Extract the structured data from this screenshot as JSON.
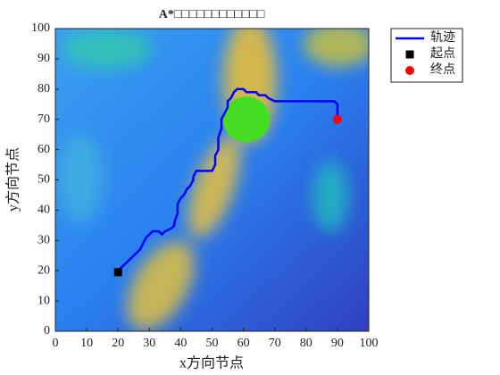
{
  "chart_data": {
    "type": "line",
    "title": "A*□□□□□□□□□□□□",
    "x_label": "x方向节点",
    "y_label": "y方向节点",
    "xlim": [
      0,
      100
    ],
    "ylim": [
      0,
      100
    ],
    "xticks": [
      0,
      10,
      20,
      30,
      40,
      50,
      60,
      70,
      80,
      90,
      100
    ],
    "yticks": [
      0,
      10,
      20,
      30,
      40,
      50,
      60,
      70,
      80,
      90,
      100
    ],
    "legend": "outside-top-right",
    "obstacle": {
      "center": [
        61,
        70
      ],
      "radius": 7.5,
      "color": "#44dd22"
    },
    "series": [
      {
        "name": "轨迹",
        "color": "#0000ff",
        "x": [
          20,
          21,
          27,
          28,
          29,
          30,
          31,
          33,
          34,
          35,
          37,
          38,
          38,
          39,
          39,
          40,
          41,
          42,
          43,
          44,
          44,
          45,
          50,
          51,
          51,
          52,
          52,
          53,
          53,
          54,
          55,
          55,
          56,
          57,
          58,
          60,
          61,
          64,
          65,
          67,
          68,
          70,
          89,
          90,
          90
        ],
        "y": [
          20,
          21,
          27,
          29,
          31,
          32,
          33,
          33,
          32,
          33,
          34,
          35,
          36,
          39,
          42,
          44,
          45,
          47,
          48,
          50,
          51,
          53,
          53,
          55,
          58,
          60,
          64,
          67,
          70,
          72,
          74,
          76,
          77,
          79,
          80,
          80,
          79,
          79,
          78,
          78,
          77,
          76,
          76,
          75,
          70
        ]
      },
      {
        "name": "起点",
        "color": "#000000",
        "marker": "square",
        "x": [
          20
        ],
        "y": [
          19.5
        ]
      },
      {
        "name": "终点",
        "color": "#ff0000",
        "marker": "circle",
        "x": [
          90
        ],
        "y": [
          70
        ]
      }
    ]
  }
}
